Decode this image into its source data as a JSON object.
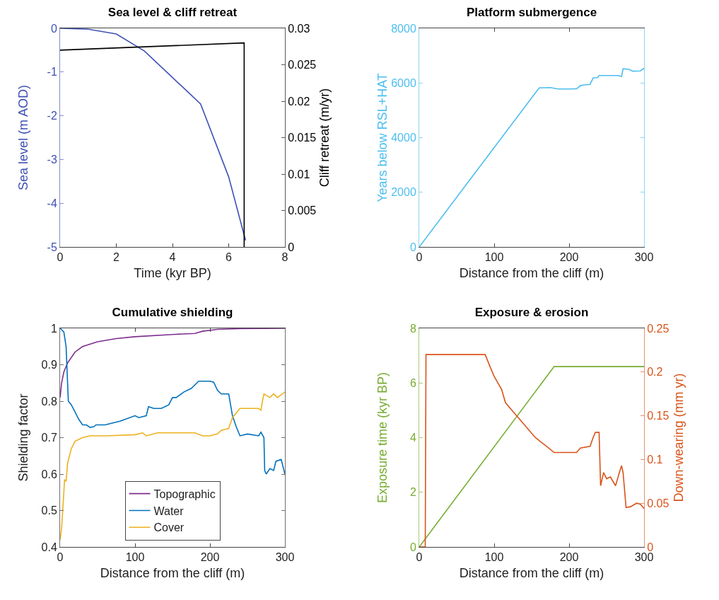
{
  "chart_data": [
    {
      "type": "line",
      "title": "Sea level & cliff retreat",
      "xlabel": "Time (kyr BP)",
      "ylabel": "Sea level (m AOD)",
      "y2label": "Cliff retreat (m/yr)",
      "xlim": [
        0,
        8
      ],
      "xticks": [
        0,
        2,
        4,
        6,
        8
      ],
      "ylim": [
        -5,
        0
      ],
      "yticks": [
        -5,
        -4,
        -3,
        -2,
        -1,
        0
      ],
      "y2lim": [
        0,
        0.03
      ],
      "y2ticks": [
        0,
        0.005,
        0.01,
        0.015,
        0.02,
        0.025,
        0.03
      ],
      "legend": false,
      "series": [
        {
          "color": "#3f51b5",
          "x": [
            0,
            1,
            2,
            3,
            5,
            6,
            6.6
          ],
          "values": [
            0,
            -0.02,
            -0.13,
            -0.52,
            -1.73,
            -3.4,
            -4.85
          ]
        },
        {
          "color": "#000000",
          "axis": "y2",
          "x": [
            0,
            6.55,
            6.55
          ],
          "values": [
            0.027,
            0.028,
            0
          ]
        }
      ]
    },
    {
      "type": "line",
      "title": "Platform submergence",
      "xlabel": "Distance from the cliff (m)",
      "ylabel": "Years below RSL+HAT",
      "xlim": [
        0,
        300
      ],
      "xticks": [
        0,
        100,
        200,
        300
      ],
      "ylim": [
        0,
        8000
      ],
      "yticks": [
        0,
        2000,
        4000,
        6000,
        8000
      ],
      "legend": false,
      "series": [
        {
          "color": "#4dbeee",
          "x": [
            0,
            160,
            175,
            185,
            200,
            210,
            215,
            220,
            228,
            232,
            238,
            240,
            265,
            270,
            272,
            280,
            285,
            295,
            300
          ],
          "values": [
            0,
            5820,
            5830,
            5780,
            5780,
            5790,
            5900,
            5930,
            5950,
            6180,
            6200,
            6270,
            6270,
            6240,
            6520,
            6500,
            6430,
            6440,
            6540
          ]
        }
      ]
    },
    {
      "type": "line",
      "title": "Cumulative shielding",
      "xlabel": "Distance from the cliff (m)",
      "ylabel": "Shielding factor",
      "xlim": [
        0,
        300
      ],
      "xticks": [
        0,
        100,
        200,
        300
      ],
      "ylim": [
        0.4,
        1
      ],
      "yticks": [
        0.4,
        0.5,
        0.6,
        0.7,
        0.8,
        0.9,
        1
      ],
      "legend": "bottom",
      "series": [
        {
          "name": "Topographic",
          "color": "#7e2f8e",
          "x": [
            0,
            2,
            5,
            10,
            20,
            30,
            50,
            75,
            100,
            150,
            180,
            190,
            210,
            240,
            300
          ],
          "values": [
            0.81,
            0.85,
            0.88,
            0.905,
            0.935,
            0.95,
            0.963,
            0.972,
            0.977,
            0.983,
            0.986,
            0.992,
            0.997,
            0.999,
            1
          ]
        },
        {
          "name": "Water",
          "color": "#0072bd",
          "x": [
            0,
            5,
            8,
            10,
            11,
            15,
            20,
            25,
            30,
            35,
            40,
            45,
            48,
            60,
            80,
            100,
            105,
            115,
            118,
            125,
            135,
            145,
            150,
            155,
            165,
            175,
            185,
            200,
            205,
            210,
            215,
            225,
            230,
            235,
            240,
            250,
            265,
            268,
            272,
            273,
            275,
            280,
            285,
            288,
            295,
            300
          ],
          "values": [
            1,
            0.99,
            0.95,
            0.85,
            0.8,
            0.79,
            0.77,
            0.75,
            0.735,
            0.735,
            0.728,
            0.73,
            0.735,
            0.735,
            0.745,
            0.76,
            0.755,
            0.76,
            0.785,
            0.78,
            0.78,
            0.79,
            0.81,
            0.81,
            0.825,
            0.835,
            0.855,
            0.855,
            0.852,
            0.83,
            0.82,
            0.82,
            0.76,
            0.73,
            0.705,
            0.71,
            0.705,
            0.715,
            0.7,
            0.61,
            0.6,
            0.615,
            0.61,
            0.635,
            0.64,
            0.6
          ]
        },
        {
          "name": "Cover",
          "color": "#edb120",
          "x": [
            0,
            2,
            5,
            6,
            8,
            10,
            15,
            20,
            30,
            40,
            60,
            100,
            110,
            115,
            130,
            160,
            180,
            190,
            200,
            210,
            215,
            225,
            230,
            240,
            265,
            268,
            270,
            272,
            280,
            285,
            290,
            300
          ],
          "values": [
            0.42,
            0.45,
            0.55,
            0.585,
            0.58,
            0.63,
            0.67,
            0.69,
            0.7,
            0.705,
            0.705,
            0.708,
            0.713,
            0.705,
            0.713,
            0.713,
            0.713,
            0.705,
            0.705,
            0.71,
            0.72,
            0.725,
            0.755,
            0.78,
            0.78,
            0.775,
            0.8,
            0.82,
            0.81,
            0.82,
            0.81,
            0.825
          ]
        }
      ]
    },
    {
      "type": "line",
      "title": "Exposure & erosion",
      "xlabel": "Distance from the cliff (m)",
      "ylabel": "Exposure time (kyr BP)",
      "y2label": "Down-wearing (mm yr)",
      "xlim": [
        0,
        300
      ],
      "xticks": [
        0,
        100,
        200,
        300
      ],
      "ylim": [
        0,
        8
      ],
      "yticks": [
        0,
        2,
        4,
        6,
        8
      ],
      "y2lim": [
        0,
        0.25
      ],
      "y2ticks": [
        0,
        0.05,
        0.1,
        0.15,
        0.2,
        0.25
      ],
      "legend": false,
      "series": [
        {
          "color": "#77ac30",
          "x": [
            0,
            180,
            300
          ],
          "values": [
            0,
            6.6,
            6.6
          ]
        },
        {
          "color": "#d95319",
          "axis": "y2",
          "x": [
            0,
            8,
            9,
            88,
            95,
            100,
            110,
            115,
            125,
            140,
            155,
            170,
            180,
            210,
            215,
            228,
            232,
            235,
            240,
            242,
            246,
            250,
            255,
            262,
            267,
            270,
            272,
            276,
            282,
            290,
            295,
            300
          ],
          "values": [
            0,
            0,
            0.22,
            0.22,
            0.205,
            0.195,
            0.18,
            0.165,
            0.155,
            0.14,
            0.125,
            0.115,
            0.108,
            0.108,
            0.113,
            0.115,
            0.125,
            0.131,
            0.131,
            0.07,
            0.085,
            0.078,
            0.08,
            0.07,
            0.085,
            0.093,
            0.085,
            0.045,
            0.046,
            0.05,
            0.049,
            0.044
          ]
        }
      ]
    }
  ]
}
